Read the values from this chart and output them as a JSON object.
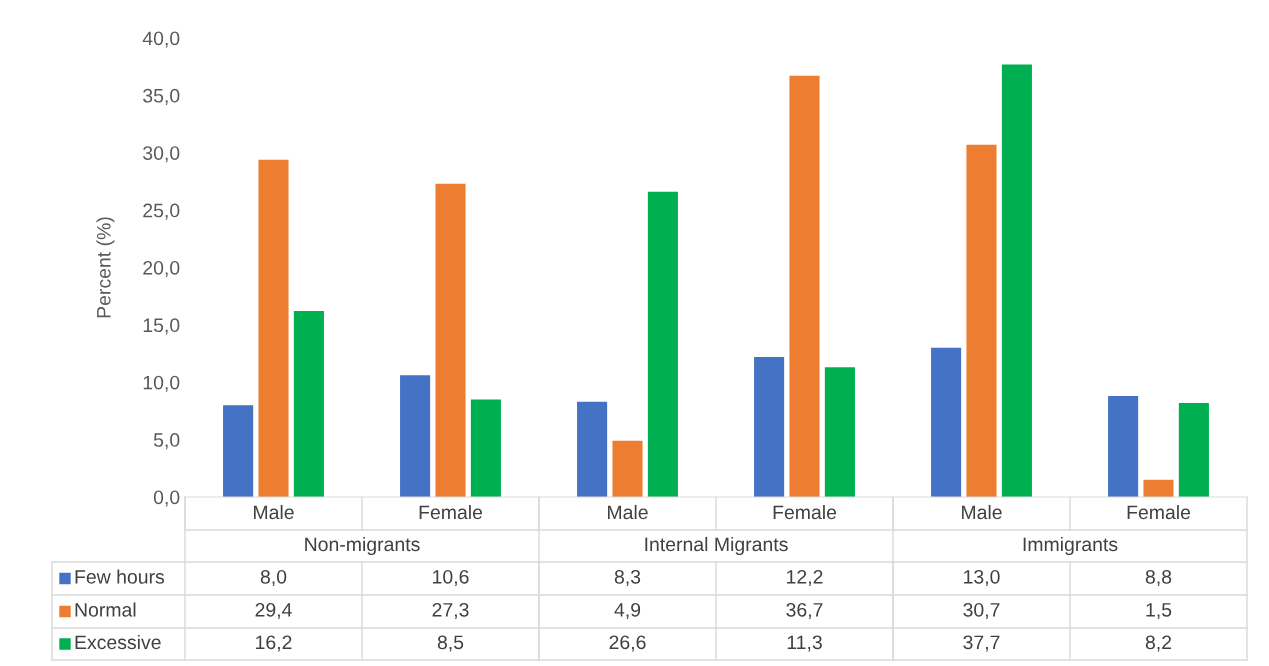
{
  "chart_data": {
    "type": "bar",
    "ylabel": "Percent (%)",
    "categories": [
      "Male",
      "Female",
      "Male",
      "Female",
      "Male",
      "Female"
    ],
    "annotations": [
      "Non-migrants",
      "Internal Migrants",
      "Immigrants"
    ],
    "series": [
      {
        "name": "Few hours",
        "color": "#4472c4",
        "values": [
          8.0,
          10.6,
          8.3,
          12.2,
          13.0,
          8.8
        ],
        "value_labels": [
          "8,0",
          "10,6",
          "8,3",
          "12,2",
          "13,0",
          "8,8"
        ]
      },
      {
        "name": "Normal",
        "color": "#ed7d31",
        "values": [
          29.4,
          27.3,
          4.9,
          36.7,
          30.7,
          1.5
        ],
        "value_labels": [
          "29,4",
          "27,3",
          "4,9",
          "36,7",
          "30,7",
          "1,5"
        ]
      },
      {
        "name": "Excessive",
        "color": "#00b050",
        "values": [
          16.2,
          8.5,
          26.6,
          11.3,
          37.7,
          8.2
        ],
        "value_labels": [
          "16,2",
          "8,5",
          "26,6",
          "11,3",
          "37,7",
          "8,2"
        ]
      }
    ],
    "ylim": [
      0,
      40
    ],
    "yticks": [
      {
        "value": 0,
        "label": "0,0"
      },
      {
        "value": 5,
        "label": "5,0"
      },
      {
        "value": 10,
        "label": "10,0"
      },
      {
        "value": 15,
        "label": "15,0"
      },
      {
        "value": 20,
        "label": "20,0"
      },
      {
        "value": 25,
        "label": "25,0"
      },
      {
        "value": 30,
        "label": "30,0"
      },
      {
        "value": 35,
        "label": "35,0"
      },
      {
        "value": 40,
        "label": "40,0"
      }
    ],
    "grid": false,
    "legend": "bottom left"
  }
}
